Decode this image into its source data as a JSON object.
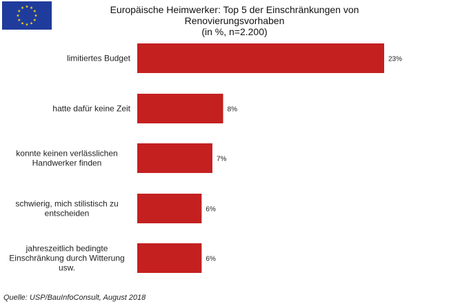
{
  "flag": {
    "name": "EU flag",
    "background": "#1f3c9c",
    "star_color": "#f3d21c",
    "stars": 12
  },
  "chart_data": {
    "type": "bar",
    "orientation": "horizontal",
    "title_lines": [
      "Europäische Heimwerker: Top 5 der Einschränkungen von",
      "Renovierungsvorhaben",
      "(in %, n=2.200)"
    ],
    "title": "Europäische Heimwerker: Top 5 der Einschränkungen von Renovierungsvorhaben (in %, n=2.200)",
    "categories": [
      [
        "limitiertes Budget"
      ],
      [
        "hatte dafür keine Zeit"
      ],
      [
        "konnte keinen verlässlichen",
        "Handwerker finden"
      ],
      [
        "schwierig, mich stilistisch zu",
        "entscheiden"
      ],
      [
        "jahreszeitlich bedingte",
        "Einschränkung durch Witterung",
        "usw."
      ]
    ],
    "values": [
      23,
      8,
      7,
      6,
      6
    ],
    "value_labels": [
      "23%",
      "8%",
      "7%",
      "6%",
      "6%"
    ],
    "xlabel": "",
    "ylabel": "",
    "xlim": [
      0,
      23
    ],
    "grid": false,
    "legend": "none",
    "bar_color": "#c42020"
  },
  "source": "Quelle: USP/BauInfoConsult, August 2018"
}
